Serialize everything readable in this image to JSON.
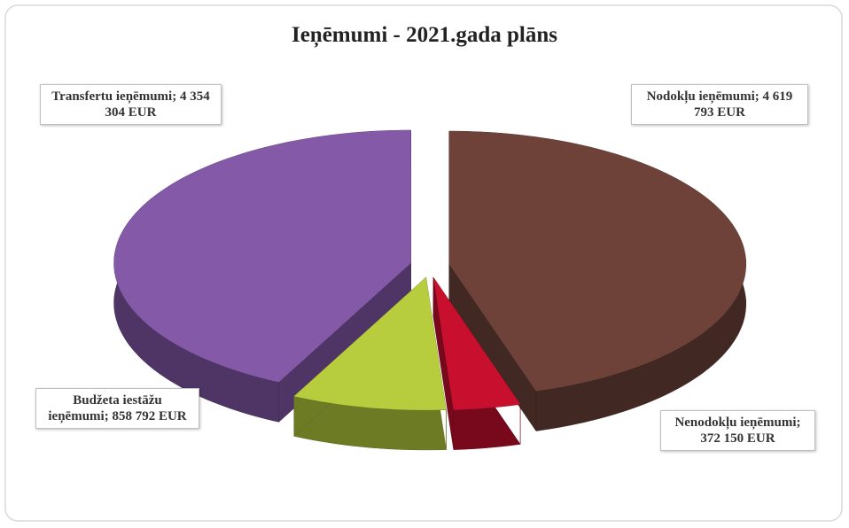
{
  "chart_data": {
    "type": "pie",
    "title": "Ieņēmumi - 2021.gada plāns",
    "categories": [
      "Nodokļu ieņēmumi;",
      "Nenodokļu ieņēmumi;",
      "Budžeta iestāžu ieņēmumi;",
      "Transfertu ieņēmumi;"
    ],
    "values": [
      4619793,
      372150,
      858792,
      4354304
    ],
    "value_labels": [
      "4 619 793 EUR",
      "372 150 EUR",
      "858 792 EUR",
      "4 354 304 EUR"
    ],
    "colors": [
      "#6e4239",
      "#c80f2e",
      "#b7cd3e",
      "#8359a8"
    ]
  }
}
